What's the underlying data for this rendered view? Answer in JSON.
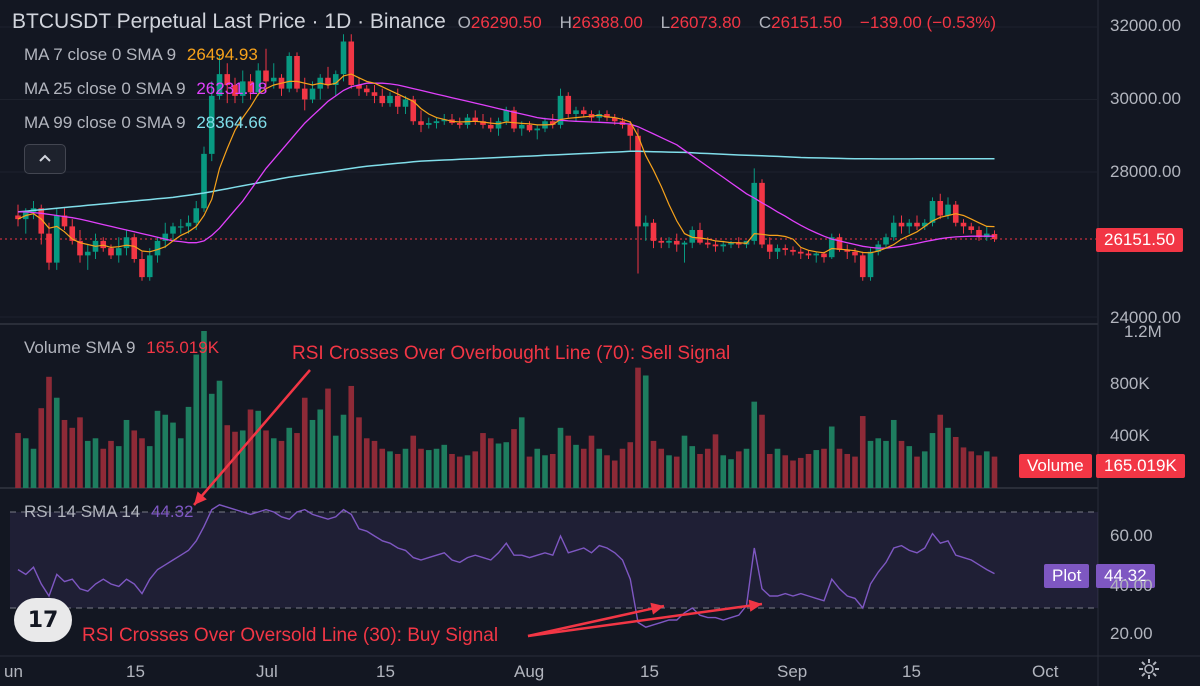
{
  "header": {
    "title": "BTCUSDT Perpetual Last Price · 1D · Binance",
    "open_label": "O",
    "open": "26290.50",
    "high_label": "H",
    "high": "26388.00",
    "low_label": "L",
    "low": "26073.80",
    "close_label": "C",
    "close": "26151.50",
    "change": "−139.00 (−0.53%)"
  },
  "indicators": {
    "ma7": {
      "label": "MA 7 close 0 SMA 9",
      "value": "26494.93",
      "color": "#f7a21b"
    },
    "ma25": {
      "label": "MA 25 close 0 SMA 9",
      "value": "26231.18",
      "color": "#e040fb"
    },
    "ma99": {
      "label": "MA 99 close 0 SMA 9",
      "value": "28364.66",
      "color": "#80deea"
    }
  },
  "collapse_icon": "chevron-up-icon",
  "volume": {
    "label": "Volume SMA 9",
    "value": "165.019K",
    "tag_label": "Volume",
    "tag_value": "165.019K"
  },
  "rsi": {
    "label": "RSI 14 SMA 14",
    "value": "44.32",
    "tag_label": "Plot",
    "tag_value": "44.32"
  },
  "price_tag": "26151.50",
  "annotations": {
    "overbought": "RSI Crosses Over Overbought Line (70): Sell Signal",
    "oversold": "RSI Crosses Over Oversold Line (30): Buy Signal"
  },
  "price_axis": [
    "32000.00",
    "30000.00",
    "28000.00",
    "24000.00"
  ],
  "volume_axis": [
    "1.2M",
    "800K",
    "400K"
  ],
  "rsi_axis": [
    "60.00",
    "40.00",
    "20.00"
  ],
  "time_axis": [
    "un",
    "15",
    "Jul",
    "15",
    "Aug",
    "15",
    "Sep",
    "15",
    "Oct"
  ],
  "logo_text": "17",
  "settings_icon": "gear-icon",
  "colors": {
    "up": "#089981",
    "down": "#f23645",
    "up_vol": "#1e7d5f",
    "down_vol": "#8e2a37",
    "rsi": "#7e57c2",
    "background": "#131722"
  },
  "chart_data": {
    "type": "candlestick",
    "series_ohlc": [
      [
        26800,
        27100,
        26500,
        26700
      ],
      [
        26700,
        27000,
        26300,
        26900
      ],
      [
        26900,
        27200,
        26700,
        27000
      ],
      [
        27000,
        27100,
        26000,
        26300
      ],
      [
        26300,
        26600,
        25300,
        25500
      ],
      [
        25500,
        27000,
        25300,
        26800
      ],
      [
        26800,
        27000,
        26400,
        26500
      ],
      [
        26500,
        26700,
        26000,
        26100
      ],
      [
        26100,
        26400,
        25500,
        25700
      ],
      [
        25700,
        26000,
        25300,
        25800
      ],
      [
        25800,
        26300,
        25600,
        26100
      ],
      [
        26100,
        26200,
        25800,
        25900
      ],
      [
        25900,
        26000,
        25600,
        25700
      ],
      [
        25700,
        26200,
        25500,
        25900
      ],
      [
        25900,
        26400,
        25700,
        26200
      ],
      [
        26200,
        26300,
        25500,
        25600
      ],
      [
        25600,
        25800,
        25000,
        25100
      ],
      [
        25100,
        25900,
        25000,
        25700
      ],
      [
        25700,
        26200,
        25500,
        26100
      ],
      [
        26100,
        26600,
        25900,
        26300
      ],
      [
        26300,
        26600,
        26100,
        26500
      ],
      [
        26500,
        26700,
        26300,
        26500
      ],
      [
        26500,
        26800,
        26300,
        26600
      ],
      [
        26600,
        27200,
        26400,
        27000
      ],
      [
        27000,
        28700,
        26900,
        28500
      ],
      [
        28500,
        30500,
        28300,
        30100
      ],
      [
        30100,
        31200,
        30000,
        30700
      ],
      [
        30700,
        31000,
        29900,
        30400
      ],
      [
        30400,
        30600,
        29900,
        30100
      ],
      [
        30100,
        30800,
        29900,
        30500
      ],
      [
        30500,
        30700,
        30000,
        30200
      ],
      [
        30200,
        31000,
        30100,
        30800
      ],
      [
        30800,
        31400,
        30200,
        30500
      ],
      [
        30500,
        31000,
        30300,
        30600
      ],
      [
        30600,
        30700,
        30100,
        30300
      ],
      [
        30300,
        31300,
        30200,
        31200
      ],
      [
        31200,
        31300,
        30200,
        30300
      ],
      [
        30300,
        30600,
        29700,
        30000
      ],
      [
        30000,
        30500,
        29900,
        30300
      ],
      [
        30300,
        30700,
        30000,
        30600
      ],
      [
        30600,
        30900,
        30300,
        30400
      ],
      [
        30400,
        30800,
        30100,
        30700
      ],
      [
        30700,
        31800,
        30500,
        31600
      ],
      [
        31600,
        31800,
        30300,
        30400
      ],
      [
        30400,
        30600,
        30100,
        30300
      ],
      [
        30300,
        30400,
        30100,
        30200
      ],
      [
        30200,
        30400,
        29900,
        30100
      ],
      [
        30100,
        30300,
        29800,
        29900
      ],
      [
        29900,
        30200,
        29800,
        30100
      ],
      [
        30100,
        30300,
        29600,
        29800
      ],
      [
        29800,
        30100,
        29600,
        30000
      ],
      [
        30000,
        30100,
        29300,
        29400
      ],
      [
        29400,
        29700,
        29100,
        29300
      ],
      [
        29300,
        29500,
        29200,
        29350
      ],
      [
        29350,
        29500,
        29200,
        29400
      ],
      [
        29400,
        29600,
        29300,
        29450
      ],
      [
        29450,
        29600,
        29300,
        29350
      ],
      [
        29350,
        29500,
        29200,
        29300
      ],
      [
        29300,
        29600,
        29200,
        29500
      ],
      [
        29500,
        29700,
        29300,
        29400
      ],
      [
        29400,
        29600,
        29200,
        29300
      ],
      [
        29300,
        29500,
        29100,
        29200
      ],
      [
        29200,
        29500,
        29000,
        29400
      ],
      [
        29400,
        29800,
        29300,
        29700
      ],
      [
        29700,
        29800,
        29100,
        29200
      ],
      [
        29200,
        29400,
        29000,
        29300
      ],
      [
        29300,
        29400,
        29100,
        29150
      ],
      [
        29150,
        29300,
        28900,
        29200
      ],
      [
        29200,
        29500,
        29100,
        29400
      ],
      [
        29400,
        29600,
        29200,
        29300
      ],
      [
        29300,
        30300,
        29200,
        30100
      ],
      [
        30100,
        30200,
        29500,
        29600
      ],
      [
        29600,
        29800,
        29400,
        29700
      ],
      [
        29700,
        29800,
        29500,
        29600
      ],
      [
        29600,
        29700,
        29400,
        29500
      ],
      [
        29500,
        29700,
        29400,
        29600
      ],
      [
        29600,
        29700,
        29400,
        29500
      ],
      [
        29500,
        29600,
        29300,
        29400
      ],
      [
        29400,
        29500,
        29200,
        29300
      ],
      [
        29300,
        29400,
        28600,
        29000
      ],
      [
        29000,
        29200,
        25200,
        26500
      ],
      [
        26500,
        26800,
        26100,
        26600
      ],
      [
        26600,
        26700,
        25900,
        26100
      ],
      [
        26100,
        26200,
        25900,
        26050
      ],
      [
        26050,
        26200,
        25900,
        26100
      ],
      [
        26100,
        26300,
        25800,
        26000
      ],
      [
        26000,
        26100,
        25500,
        26050
      ],
      [
        26050,
        26500,
        25900,
        26400
      ],
      [
        26400,
        26600,
        26000,
        26050
      ],
      [
        26050,
        26200,
        25900,
        26000
      ],
      [
        26000,
        26100,
        25800,
        25950
      ],
      [
        25950,
        26100,
        25800,
        26000
      ],
      [
        26000,
        26100,
        25900,
        26050
      ],
      [
        26050,
        26200,
        25900,
        26000
      ],
      [
        26000,
        26100,
        25900,
        26100
      ],
      [
        26100,
        28100,
        26000,
        27700
      ],
      [
        27700,
        27800,
        25900,
        26000
      ],
      [
        26000,
        26200,
        25600,
        25800
      ],
      [
        25800,
        26000,
        25600,
        25900
      ],
      [
        25900,
        26000,
        25700,
        25850
      ],
      [
        25850,
        25950,
        25700,
        25800
      ],
      [
        25800,
        25900,
        25600,
        25750
      ],
      [
        25750,
        25850,
        25600,
        25700
      ],
      [
        25700,
        25800,
        25500,
        25750
      ],
      [
        25750,
        25800,
        25500,
        25650
      ],
      [
        25650,
        26300,
        25600,
        26200
      ],
      [
        26200,
        26300,
        25800,
        25850
      ],
      [
        25850,
        26000,
        25600,
        25800
      ],
      [
        25800,
        25900,
        25500,
        25700
      ],
      [
        25700,
        25800,
        25000,
        25100
      ],
      [
        25100,
        25900,
        25000,
        25800
      ],
      [
        25800,
        26100,
        25700,
        26000
      ],
      [
        26000,
        26300,
        25900,
        26200
      ],
      [
        26200,
        26800,
        26100,
        26600
      ],
      [
        26600,
        26800,
        26300,
        26500
      ],
      [
        26500,
        26700,
        26300,
        26600
      ],
      [
        26600,
        26800,
        26400,
        26500
      ],
      [
        26500,
        26700,
        26400,
        26600
      ],
      [
        26600,
        27300,
        26500,
        27200
      ],
      [
        27200,
        27400,
        26700,
        26800
      ],
      [
        26800,
        27300,
        26700,
        27100
      ],
      [
        27100,
        27200,
        26500,
        26600
      ],
      [
        26600,
        26700,
        26300,
        26500
      ],
      [
        26500,
        26600,
        26300,
        26400
      ],
      [
        26400,
        26500,
        26100,
        26200
      ],
      [
        26200,
        26500,
        26100,
        26300
      ],
      [
        26290.5,
        26388,
        26073.8,
        26151.5
      ]
    ],
    "volume_values": [
      420,
      380,
      300,
      610,
      850,
      690,
      520,
      460,
      540,
      360,
      380,
      300,
      360,
      320,
      520,
      440,
      380,
      320,
      590,
      560,
      500,
      380,
      620,
      1020,
      1200,
      720,
      820,
      480,
      430,
      440,
      600,
      590,
      440,
      380,
      360,
      460,
      420,
      690,
      520,
      600,
      760,
      400,
      560,
      780,
      540,
      380,
      360,
      300,
      280,
      260,
      300,
      400,
      300,
      290,
      300,
      330,
      260,
      240,
      250,
      280,
      420,
      380,
      340,
      350,
      450,
      540,
      240,
      300,
      250,
      260,
      460,
      400,
      330,
      300,
      400,
      300,
      250,
      210,
      300,
      350,
      920,
      860,
      360,
      300,
      250,
      240,
      400,
      320,
      260,
      300,
      410,
      250,
      220,
      280,
      300,
      660,
      560,
      260,
      300,
      250,
      210,
      230,
      260,
      290,
      300,
      470,
      300,
      260,
      240,
      550,
      360,
      380,
      360,
      520,
      360,
      320,
      240,
      280,
      420,
      560,
      460,
      390,
      310,
      280,
      250,
      280,
      240
    ],
    "rsi_values": [
      46,
      44,
      47,
      40,
      35,
      44,
      41,
      42,
      38,
      37,
      40,
      42,
      40,
      39,
      42,
      40,
      36,
      42,
      46,
      48,
      50,
      52,
      54,
      58,
      64,
      71,
      73,
      72,
      71,
      70,
      69,
      70,
      71,
      70,
      68,
      67,
      70,
      71,
      69,
      68,
      67,
      68,
      71,
      69,
      63,
      62,
      60,
      58,
      57,
      55,
      54,
      51,
      50,
      51,
      52,
      53,
      50,
      49,
      51,
      52,
      51,
      50,
      53,
      57,
      52,
      52,
      51,
      52,
      53,
      52,
      60,
      53,
      54,
      55,
      53,
      56,
      55,
      53,
      50,
      42,
      24,
      22,
      23,
      24,
      25,
      25,
      28,
      30,
      27,
      26,
      26,
      25,
      26,
      27,
      31,
      55,
      38,
      35,
      35,
      36,
      35,
      36,
      35,
      34,
      33,
      42,
      38,
      35,
      34,
      30,
      40,
      45,
      49,
      55,
      56,
      54,
      53,
      55,
      61,
      57,
      58,
      52,
      51,
      50,
      48,
      46,
      44.32
    ],
    "ma7_values": [
      26700,
      26800,
      26850,
      26700,
      26450,
      26500,
      26350,
      26150,
      26050,
      26000,
      25950,
      25980,
      25920,
      25940,
      25980,
      25950,
      25820,
      25800,
      25860,
      25940,
      26100,
      26250,
      26350,
      26500,
      26800,
      27250,
      28100,
      28650,
      29150,
      29500,
      29800,
      30150,
      30300,
      30400,
      30450,
      30500,
      30500,
      30450,
      30400,
      30450,
      30400,
      30450,
      30650,
      30700,
      30600,
      30500,
      30450,
      30350,
      30250,
      30150,
      30050,
      29950,
      29750,
      29600,
      29500,
      29450,
      29400,
      29380,
      29390,
      29400,
      29380,
      29350,
      29330,
      29380,
      29360,
      29340,
      29330,
      29300,
      29300,
      29310,
      29450,
      29480,
      29500,
      29520,
      29540,
      29570,
      29520,
      29500,
      29450,
      29380,
      29000,
      28450,
      28050,
      27600,
      27100,
      26650,
      26300,
      26200,
      26180,
      26150,
      26100,
      26080,
      26050,
      26050,
      26030,
      26300,
      26280,
      26250,
      26250,
      26220,
      26150,
      25920,
      25840,
      25800,
      25770,
      25890,
      25870,
      25850,
      25830,
      25780,
      25770,
      25820,
      25900,
      26000,
      26150,
      26250,
      26350,
      26500,
      26650,
      26750,
      26800,
      26850,
      26800,
      26700,
      26600,
      26500,
      26494.93
    ],
    "ma25_values": [
      26900,
      26900,
      26880,
      26860,
      26830,
      26800,
      26770,
      26740,
      26700,
      26650,
      26600,
      26550,
      26500,
      26450,
      26400,
      26350,
      26300,
      26250,
      26200,
      26150,
      26100,
      26080,
      26050,
      26050,
      26100,
      26250,
      26450,
      26700,
      26950,
      27200,
      27500,
      27800,
      28100,
      28350,
      28600,
      28850,
      29100,
      29350,
      29550,
      29750,
      29950,
      30100,
      30250,
      30350,
      30400,
      30450,
      30450,
      30450,
      30430,
      30400,
      30350,
      30300,
      30250,
      30200,
      30150,
      30100,
      30050,
      30000,
      29950,
      29900,
      29850,
      29800,
      29750,
      29700,
      29650,
      29600,
      29550,
      29500,
      29470,
      29450,
      29430,
      29410,
      29400,
      29390,
      29380,
      29370,
      29360,
      29350,
      29340,
      29320,
      29250,
      29150,
      29050,
      28950,
      28850,
      28750,
      28600,
      28450,
      28300,
      28150,
      28000,
      27850,
      27700,
      27550,
      27400,
      27280,
      27150,
      27030,
      26900,
      26780,
      26650,
      26530,
      26420,
      26320,
      26230,
      26150,
      26100,
      26050,
      26000,
      25950,
      25920,
      25900,
      25900,
      25920,
      25950,
      25990,
      26030,
      26080,
      26120,
      26160,
      26190,
      26210,
      26220,
      26230,
      26230,
      26230,
      26231.18
    ],
    "ma99_values": [
      26900,
      26920,
      26940,
      26960,
      26980,
      27000,
      27020,
      27040,
      27060,
      27080,
      27100,
      27120,
      27140,
      27160,
      27180,
      27200,
      27220,
      27240,
      27260,
      27280,
      27300,
      27330,
      27360,
      27390,
      27420,
      27460,
      27500,
      27540,
      27580,
      27620,
      27660,
      27700,
      27740,
      27780,
      27820,
      27860,
      27890,
      27920,
      27950,
      27980,
      28010,
      28040,
      28070,
      28100,
      28130,
      28160,
      28180,
      28200,
      28220,
      28240,
      28260,
      28280,
      28300,
      28310,
      28320,
      28330,
      28340,
      28350,
      28360,
      28370,
      28380,
      28390,
      28400,
      28410,
      28420,
      28430,
      28440,
      28450,
      28460,
      28470,
      28480,
      28490,
      28500,
      28510,
      28520,
      28530,
      28540,
      28550,
      28560,
      28570,
      28570,
      28565,
      28560,
      28555,
      28550,
      28545,
      28540,
      28530,
      28520,
      28510,
      28500,
      28490,
      28480,
      28470,
      28460,
      28455,
      28450,
      28440,
      28430,
      28420,
      28410,
      28400,
      28395,
      28390,
      28385,
      28380,
      28375,
      28370,
      28368,
      28366,
      28364,
      28362,
      28362,
      28362,
      28362,
      28362,
      28363,
      28363,
      28364,
      28364,
      28364,
      28364,
      28364,
      28364,
      28364,
      28364,
      28364.66
    ],
    "price_range": [
      24000,
      32200
    ],
    "volume_range": [
      0,
      1200
    ],
    "rsi_range": [
      10,
      80
    ],
    "rsi_levels": [
      70,
      30
    ]
  }
}
